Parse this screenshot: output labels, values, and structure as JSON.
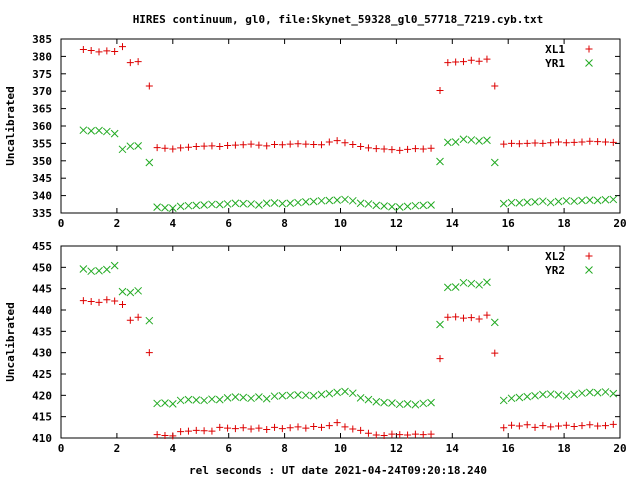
{
  "title": "HIRES continuum, gl0, file:Skynet_59328_gl0_57718_7219.cyb.txt",
  "xlabel": "rel seconds : UT date 2021-04-24T09:20:18.240",
  "colors": {
    "XL": "#dd0000",
    "YR": "#22aa22"
  },
  "chart_data": [
    {
      "type": "scatter",
      "ylabel": "Uncalibrated",
      "xlim": [
        0,
        20
      ],
      "ylim": [
        335,
        385
      ],
      "xticks": [
        0,
        2,
        4,
        6,
        8,
        10,
        12,
        14,
        16,
        18,
        20
      ],
      "yticks": [
        335,
        340,
        345,
        350,
        355,
        360,
        365,
        370,
        375,
        380,
        385
      ],
      "legend_position": "top-right",
      "series": [
        {
          "name": "XL1",
          "marker": "+",
          "color": "#dd0000",
          "x": [
            0.8,
            1.08,
            1.36,
            1.64,
            1.92,
            2.2,
            2.48,
            2.76,
            3.16,
            3.44,
            3.72,
            4.0,
            4.28,
            4.56,
            4.84,
            5.12,
            5.4,
            5.68,
            5.96,
            6.24,
            6.52,
            6.8,
            7.08,
            7.36,
            7.64,
            7.92,
            8.2,
            8.48,
            8.76,
            9.04,
            9.32,
            9.6,
            9.88,
            10.16,
            10.44,
            10.72,
            11.0,
            11.28,
            11.56,
            11.84,
            12.12,
            12.4,
            12.68,
            12.96,
            13.24,
            13.56,
            13.84,
            14.12,
            14.4,
            14.68,
            14.96,
            15.24,
            15.52,
            15.84,
            16.12,
            16.4,
            16.68,
            16.96,
            17.24,
            17.52,
            17.8,
            18.08,
            18.36,
            18.64,
            18.92,
            19.2,
            19.48,
            19.76
          ],
          "y": [
            382,
            381.7,
            381.3,
            381.6,
            381.4,
            382.8,
            378.2,
            378.5,
            371.5,
            353.8,
            353.6,
            353.4,
            353.7,
            353.9,
            354.1,
            354.2,
            354.3,
            354.1,
            354.4,
            354.5,
            354.6,
            354.8,
            354.5,
            354.3,
            354.7,
            354.6,
            354.8,
            354.9,
            354.8,
            354.7,
            354.6,
            355.4,
            355.8,
            355.2,
            354.7,
            354.1,
            353.7,
            353.5,
            353.4,
            353.2,
            353.0,
            353.3,
            353.5,
            353.4,
            353.6,
            370.2,
            378.2,
            378.4,
            378.5,
            378.9,
            378.6,
            379.2,
            371.5,
            354.8,
            355.0,
            354.9,
            355.0,
            355.1,
            355.0,
            355.2,
            355.4,
            355.2,
            355.3,
            355.4,
            355.6,
            355.5,
            355.4,
            355.3
          ]
        },
        {
          "name": "YR1",
          "marker": "x",
          "color": "#22aa22",
          "x": [
            0.8,
            1.08,
            1.36,
            1.64,
            1.92,
            2.2,
            2.48,
            2.76,
            3.16,
            3.44,
            3.72,
            4.0,
            4.28,
            4.56,
            4.84,
            5.12,
            5.4,
            5.68,
            5.96,
            6.24,
            6.52,
            6.8,
            7.08,
            7.36,
            7.64,
            7.92,
            8.2,
            8.48,
            8.76,
            9.04,
            9.32,
            9.6,
            9.88,
            10.16,
            10.44,
            10.72,
            11.0,
            11.28,
            11.56,
            11.84,
            12.12,
            12.4,
            12.68,
            12.96,
            13.24,
            13.56,
            13.84,
            14.12,
            14.4,
            14.68,
            14.96,
            15.24,
            15.52,
            15.84,
            16.12,
            16.4,
            16.68,
            16.96,
            17.24,
            17.52,
            17.8,
            18.08,
            18.36,
            18.64,
            18.92,
            19.2,
            19.48,
            19.76
          ],
          "y": [
            358.8,
            358.6,
            358.7,
            358.4,
            357.8,
            353.3,
            354.2,
            354.3,
            349.5,
            336.7,
            336.5,
            336.4,
            336.9,
            337.1,
            337.2,
            337.3,
            337.5,
            337.4,
            337.6,
            337.8,
            337.7,
            337.6,
            337.3,
            337.8,
            337.9,
            337.7,
            337.8,
            338.0,
            338.2,
            338.3,
            338.5,
            338.6,
            338.7,
            338.9,
            338.5,
            337.8,
            337.6,
            337.2,
            337.0,
            336.8,
            336.7,
            336.9,
            337.1,
            337.2,
            337.3,
            349.8,
            355.3,
            355.4,
            356.2,
            356.0,
            355.7,
            355.9,
            349.5,
            337.7,
            338.0,
            337.9,
            338.1,
            338.2,
            338.4,
            338.0,
            338.3,
            338.5,
            338.4,
            338.6,
            338.7,
            338.6,
            338.8,
            338.9
          ]
        }
      ]
    },
    {
      "type": "scatter",
      "ylabel": "Uncalibrated",
      "xlim": [
        0,
        20
      ],
      "ylim": [
        410,
        455
      ],
      "xticks": [
        0,
        2,
        4,
        6,
        8,
        10,
        12,
        14,
        16,
        18,
        20
      ],
      "yticks": [
        410,
        415,
        420,
        425,
        430,
        435,
        440,
        445,
        450,
        455
      ],
      "legend_position": "top-right",
      "series": [
        {
          "name": "XL2",
          "marker": "+",
          "color": "#dd0000",
          "x": [
            0.8,
            1.08,
            1.36,
            1.64,
            1.92,
            2.2,
            2.48,
            2.76,
            3.16,
            3.44,
            3.72,
            4.0,
            4.28,
            4.56,
            4.84,
            5.12,
            5.4,
            5.68,
            5.96,
            6.24,
            6.52,
            6.8,
            7.08,
            7.36,
            7.64,
            7.92,
            8.2,
            8.48,
            8.76,
            9.04,
            9.32,
            9.6,
            9.88,
            10.16,
            10.44,
            10.72,
            11.0,
            11.28,
            11.56,
            11.84,
            12.12,
            12.4,
            12.68,
            12.96,
            13.24,
            13.56,
            13.84,
            14.12,
            14.4,
            14.68,
            14.96,
            15.24,
            15.52,
            15.84,
            16.12,
            16.4,
            16.68,
            16.96,
            17.24,
            17.52,
            17.8,
            18.08,
            18.36,
            18.64,
            18.92,
            19.2,
            19.48,
            19.76
          ],
          "y": [
            442.2,
            442.0,
            441.8,
            442.4,
            442.1,
            441.3,
            437.6,
            438.3,
            430.0,
            410.8,
            410.6,
            410.5,
            411.5,
            411.6,
            411.8,
            411.7,
            411.6,
            412.5,
            412.3,
            412.2,
            412.4,
            412.1,
            412.3,
            412.0,
            412.5,
            412.2,
            412.4,
            412.6,
            412.3,
            412.7,
            412.5,
            412.9,
            413.6,
            412.6,
            412.1,
            411.8,
            411.1,
            410.7,
            410.6,
            410.9,
            410.8,
            410.7,
            410.9,
            410.8,
            410.9,
            428.6,
            438.3,
            438.4,
            438.1,
            438.2,
            437.9,
            438.8,
            429.9,
            412.4,
            413.0,
            412.8,
            413.1,
            412.5,
            412.9,
            412.6,
            412.8,
            413.0,
            412.7,
            412.9,
            413.1,
            412.8,
            412.9,
            413.2
          ]
        },
        {
          "name": "YR2",
          "marker": "x",
          "color": "#22aa22",
          "x": [
            0.8,
            1.08,
            1.36,
            1.64,
            1.92,
            2.2,
            2.48,
            2.76,
            3.16,
            3.44,
            3.72,
            4.0,
            4.28,
            4.56,
            4.84,
            5.12,
            5.4,
            5.68,
            5.96,
            6.24,
            6.52,
            6.8,
            7.08,
            7.36,
            7.64,
            7.92,
            8.2,
            8.48,
            8.76,
            9.04,
            9.32,
            9.6,
            9.88,
            10.16,
            10.44,
            10.72,
            11.0,
            11.28,
            11.56,
            11.84,
            12.12,
            12.4,
            12.68,
            12.96,
            13.24,
            13.56,
            13.84,
            14.12,
            14.4,
            14.68,
            14.96,
            15.24,
            15.52,
            15.84,
            16.12,
            16.4,
            16.68,
            16.96,
            17.24,
            17.52,
            17.8,
            18.08,
            18.36,
            18.64,
            18.92,
            19.2,
            19.48,
            19.76
          ],
          "y": [
            449.6,
            449.1,
            449.2,
            449.5,
            450.4,
            444.3,
            444.1,
            444.5,
            437.5,
            418.1,
            418.2,
            418.0,
            418.8,
            419.0,
            418.9,
            418.8,
            419.1,
            419.0,
            419.4,
            419.6,
            419.5,
            419.3,
            419.6,
            419.2,
            419.8,
            419.9,
            420.0,
            420.1,
            420.0,
            419.9,
            420.2,
            420.4,
            420.7,
            420.9,
            420.5,
            419.4,
            419.0,
            418.5,
            418.3,
            418.2,
            417.9,
            418.0,
            417.8,
            418.1,
            418.3,
            436.6,
            445.3,
            445.4,
            446.4,
            446.2,
            445.9,
            446.5,
            437.1,
            418.8,
            419.3,
            419.5,
            419.7,
            419.9,
            420.2,
            420.3,
            420.1,
            419.8,
            420.2,
            420.5,
            420.7,
            420.6,
            420.8,
            420.4
          ]
        }
      ]
    }
  ]
}
